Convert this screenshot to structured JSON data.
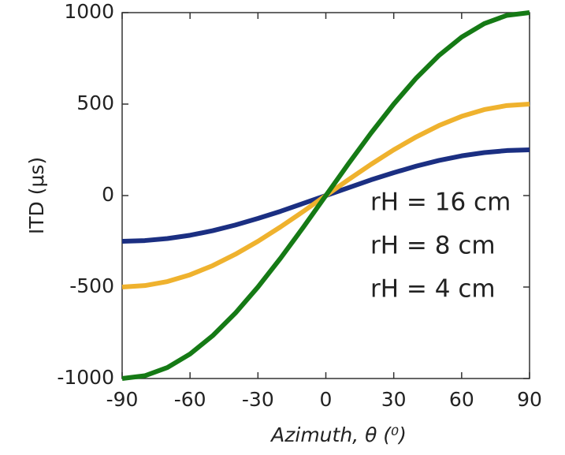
{
  "chart_data": {
    "type": "line",
    "x_label": "Azimuth, θ (⁰)",
    "y_label": "ITD (μs)",
    "x": [
      -90,
      -80,
      -70,
      -60,
      -50,
      -40,
      -30,
      -20,
      -10,
      0,
      10,
      20,
      30,
      40,
      50,
      60,
      70,
      80,
      90
    ],
    "series": [
      {
        "name": "rH = 16 cm",
        "color": "#157a15",
        "values": [
          -1000,
          -985,
          -940,
          -866,
          -766,
          -643,
          -500,
          -342,
          -174,
          0,
          174,
          342,
          500,
          643,
          766,
          866,
          940,
          985,
          1000
        ]
      },
      {
        "name": "rH = 8 cm",
        "color": "#efb22e",
        "values": [
          -500,
          -492,
          -470,
          -433,
          -383,
          -321,
          -250,
          -171,
          -87,
          0,
          87,
          171,
          250,
          321,
          383,
          433,
          470,
          492,
          500
        ]
      },
      {
        "name": "rH = 4 cm",
        "color": "#1b2f82",
        "values": [
          -250,
          -246,
          -235,
          -217,
          -192,
          -161,
          -125,
          -86,
          -43,
          0,
          43,
          86,
          125,
          161,
          192,
          217,
          235,
          246,
          250
        ]
      }
    ],
    "xlim": [
      -90,
      90
    ],
    "xticks": [
      -90,
      -60,
      -30,
      0,
      30,
      60,
      90
    ],
    "ylim": [
      -1000,
      1000
    ],
    "yticks": [
      -1000,
      -500,
      0,
      500,
      1000
    ]
  }
}
